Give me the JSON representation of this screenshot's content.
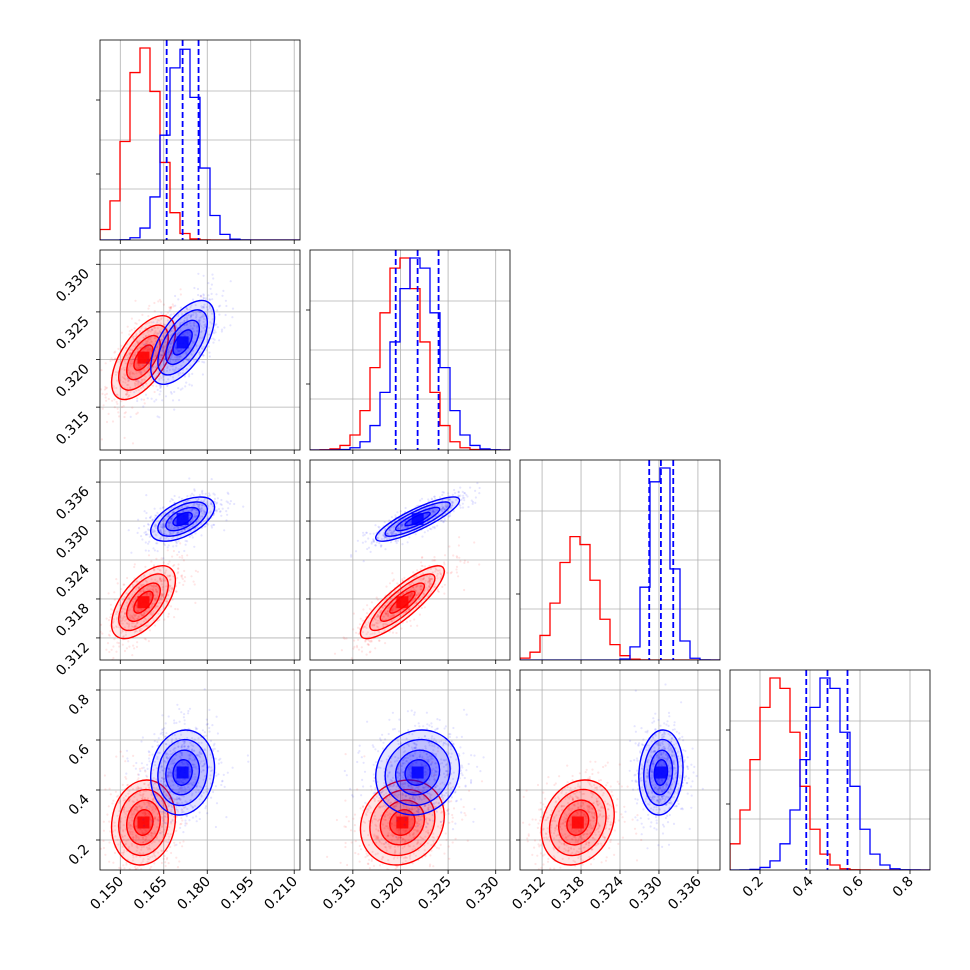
{
  "chart_data": {
    "type": "corner",
    "grid": true,
    "n_params": 4,
    "colors": {
      "red": "#ff0000",
      "blue": "#0000ff"
    },
    "series": [
      {
        "color": "#ff0000",
        "mean": [
          0.158,
          0.3202,
          0.3175,
          0.27
        ],
        "std": [
          0.0055,
          0.0022,
          0.0028,
          0.085
        ],
        "corr": [
          [
            1,
            0.6,
            0.6,
            0.1
          ],
          [
            0.6,
            1,
            0.85,
            0.15
          ],
          [
            0.6,
            0.85,
            1,
            0.2
          ],
          [
            0.1,
            0.15,
            0.2,
            1
          ]
        ]
      },
      {
        "color": "#0000ff",
        "mean": [
          0.1715,
          0.3218,
          0.3303,
          0.47
        ],
        "std": [
          0.0055,
          0.0022,
          0.0017,
          0.085
        ],
        "corr": [
          [
            1,
            0.6,
            0.55,
            0.1
          ],
          [
            0.6,
            1,
            0.85,
            0.1
          ],
          [
            0.55,
            0.85,
            1,
            0.1
          ],
          [
            0.1,
            0.1,
            0.1,
            1
          ]
        ]
      }
    ],
    "quantiles_blue": [
      [
        0.166,
        0.1715,
        0.177
      ],
      [
        0.3195,
        0.3218,
        0.324
      ],
      [
        0.3285,
        0.3303,
        0.3322
      ],
      [
        0.385,
        0.47,
        0.55
      ]
    ],
    "ranges": [
      [
        0.143,
        0.212
      ],
      [
        0.3105,
        0.3315
      ],
      [
        0.3086,
        0.3394
      ],
      [
        0.08,
        0.88
      ]
    ],
    "ticks": [
      {
        "values": [
          0.15,
          0.165,
          0.18,
          0.195,
          0.21
        ],
        "labels": [
          "0.150",
          "0.165",
          "0.180",
          "0.195",
          "0.210"
        ]
      },
      {
        "values": [
          0.315,
          0.32,
          0.325,
          0.33
        ],
        "labels": [
          "0.315",
          "0.320",
          "0.325",
          "0.330"
        ]
      },
      {
        "values": [
          0.312,
          0.318,
          0.324,
          0.33,
          0.336
        ],
        "labels": [
          "0.312",
          "0.318",
          "0.324",
          "0.330",
          "0.336"
        ]
      },
      {
        "values": [
          0.2,
          0.4,
          0.6,
          0.8
        ],
        "labels": [
          "0.2",
          "0.4",
          "0.6",
          "0.8"
        ]
      }
    ]
  }
}
